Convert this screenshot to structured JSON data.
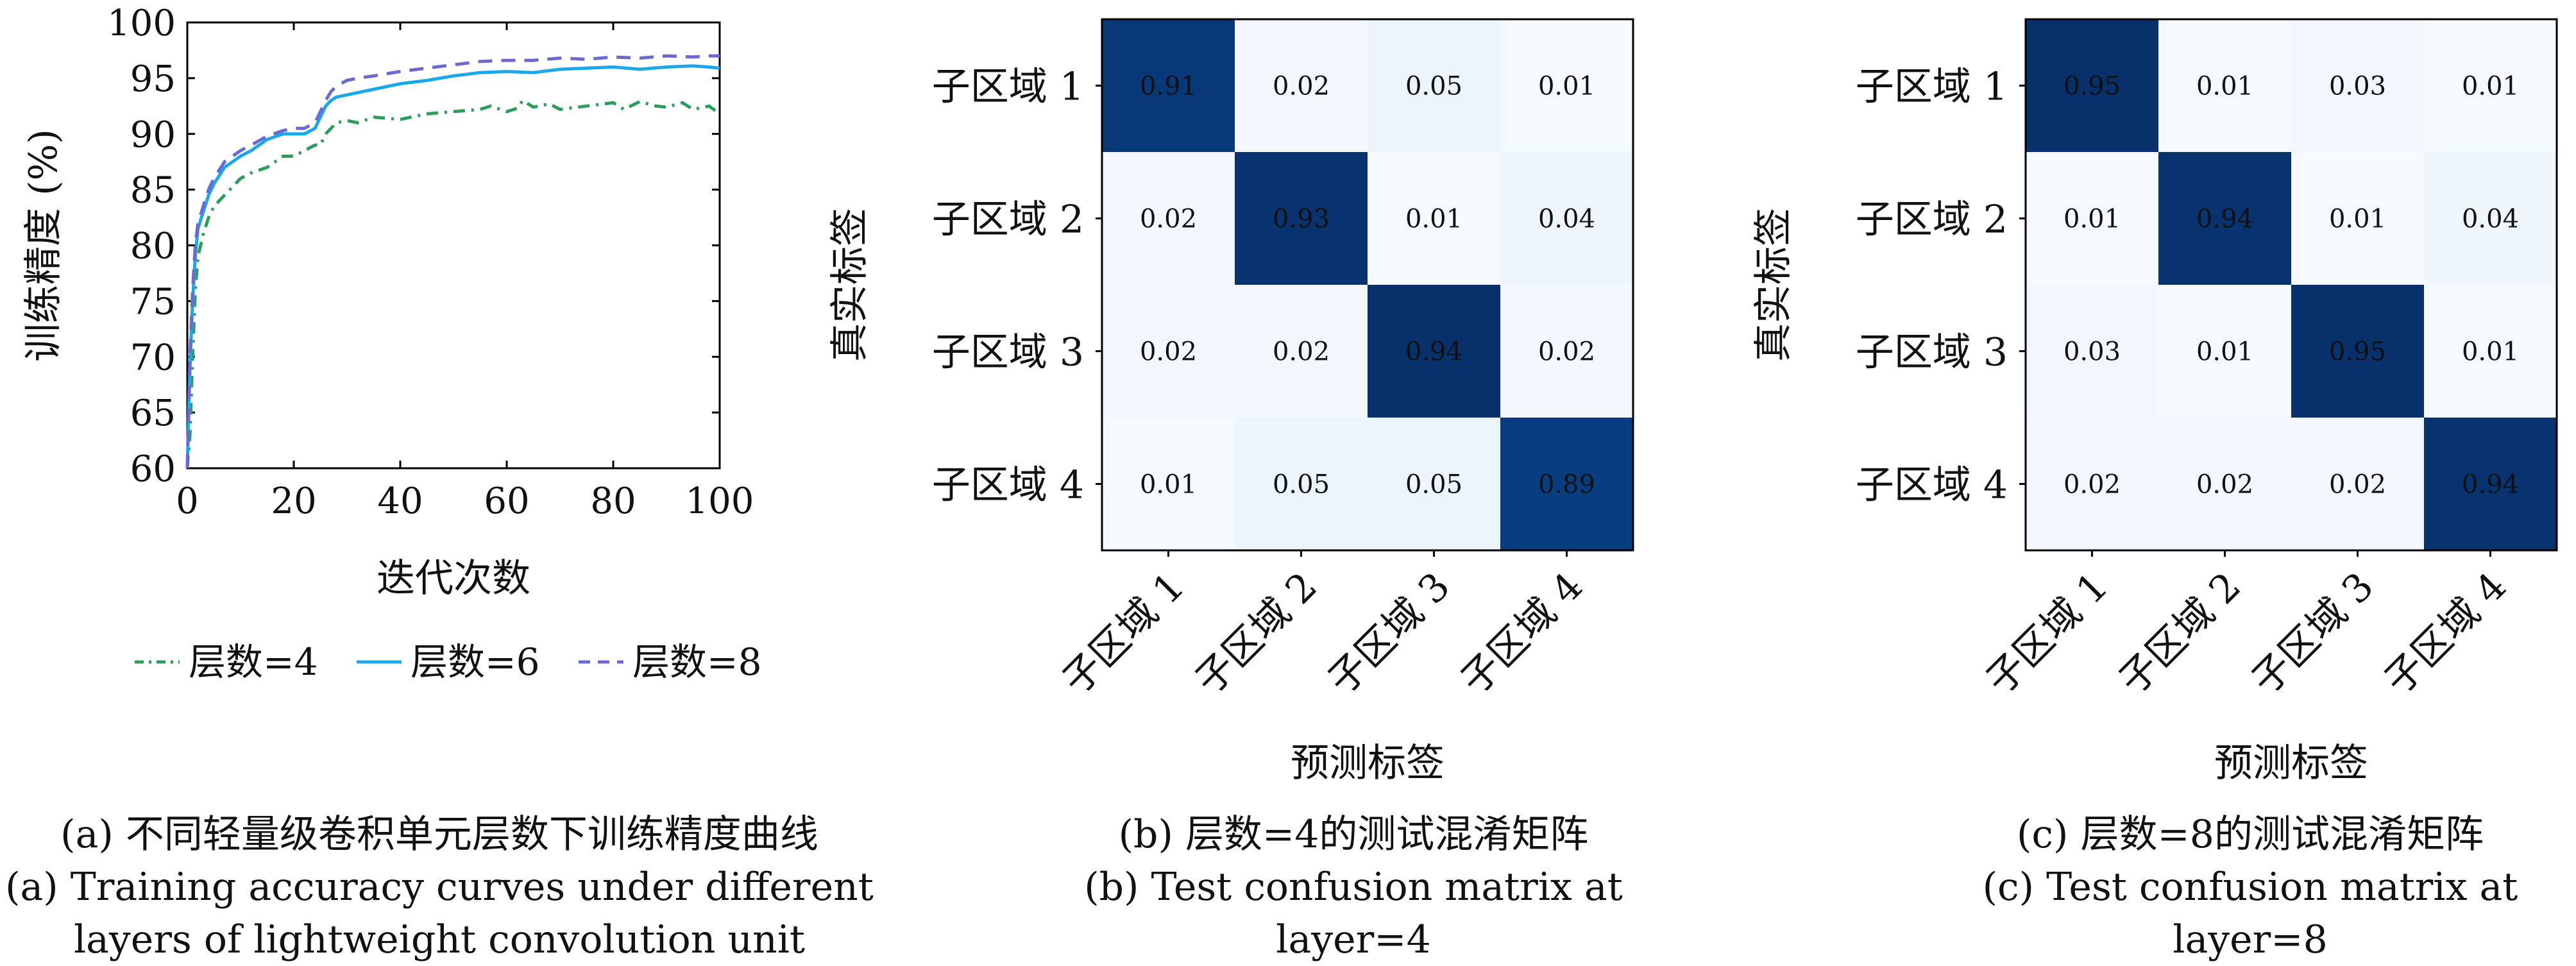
{
  "chart_data": [
    {
      "type": "line",
      "title": "",
      "xlabel": "迭代次数",
      "ylabel": "训练精度 (%)",
      "xlim": [
        0,
        100
      ],
      "ylim": [
        60,
        100
      ],
      "xticks": [
        "0",
        "20",
        "40",
        "60",
        "80",
        "100"
      ],
      "yticks": [
        "60",
        "65",
        "70",
        "75",
        "80",
        "85",
        "90",
        "95",
        "100"
      ],
      "legend_position": "bottom",
      "series": [
        {
          "name": "层数=4",
          "color": "#2e9e5e",
          "style": "dash-dot",
          "x": [
            0,
            0.5,
            1,
            1.5,
            2,
            3,
            4,
            5,
            7,
            10,
            12,
            15,
            18,
            20,
            22,
            24,
            25,
            26,
            27,
            28,
            30,
            32,
            35,
            40,
            45,
            50,
            55,
            57,
            60,
            62,
            63,
            65,
            68,
            70,
            75,
            80,
            82,
            85,
            88,
            90,
            93,
            95,
            98,
            100
          ],
          "y": [
            60,
            63,
            70,
            76,
            79,
            81,
            82.5,
            83.5,
            84.5,
            86,
            86.5,
            87,
            88,
            88,
            88.5,
            89,
            89,
            90,
            90.5,
            91,
            91.2,
            91,
            91.5,
            91.3,
            91.8,
            92,
            92.2,
            92.5,
            92,
            92.3,
            93,
            92.4,
            92.7,
            92.2,
            92.5,
            92.8,
            92.2,
            92.9,
            92.5,
            92.4,
            92.8,
            92.2,
            92.5,
            91.8
          ]
        },
        {
          "name": "层数=6",
          "color": "#1aa7ec",
          "style": "solid",
          "x": [
            0,
            0.5,
            1,
            1.5,
            2,
            3,
            4,
            5,
            7,
            10,
            12,
            15,
            18,
            20,
            22,
            24,
            25,
            26,
            27,
            28,
            30,
            32,
            35,
            40,
            45,
            50,
            55,
            60,
            65,
            70,
            75,
            80,
            85,
            90,
            95,
            98,
            100
          ],
          "y": [
            60,
            69,
            75,
            79,
            81.5,
            83,
            84.5,
            85.5,
            87,
            88,
            88.5,
            89.5,
            90,
            90,
            90,
            90.5,
            91.5,
            92.5,
            93,
            93.3,
            93.5,
            93.7,
            94,
            94.5,
            94.8,
            95.2,
            95.5,
            95.6,
            95.5,
            95.8,
            95.9,
            96,
            95.8,
            96,
            96.1,
            96,
            95.9
          ]
        },
        {
          "name": "层数=8",
          "color": "#6a6ad0",
          "style": "dash",
          "x": [
            0,
            0.5,
            1,
            1.5,
            2,
            3,
            4,
            5,
            7,
            10,
            12,
            15,
            18,
            20,
            22,
            24,
            25,
            26,
            27,
            28,
            30,
            32,
            35,
            40,
            45,
            50,
            55,
            60,
            65,
            70,
            75,
            80,
            85,
            90,
            95,
            98,
            100
          ],
          "y": [
            60,
            70,
            76,
            80,
            82,
            83.5,
            85,
            86,
            87.5,
            88.5,
            89,
            89.8,
            90.3,
            90.5,
            90.5,
            91,
            92,
            93,
            93.8,
            94.3,
            94.8,
            95,
            95.2,
            95.6,
            95.9,
            96.2,
            96.5,
            96.6,
            96.6,
            96.8,
            96.7,
            96.9,
            96.8,
            97,
            96.9,
            97,
            97
          ]
        }
      ]
    },
    {
      "type": "heatmap",
      "title": "",
      "xlabel": "预测标签",
      "ylabel": "真实标签",
      "colormap": "Blues",
      "x_categories": [
        "子区域 1",
        "子区域 2",
        "子区域 3",
        "子区域 4"
      ],
      "y_categories": [
        "子区域 1",
        "子区域 2",
        "子区域 3",
        "子区域 4"
      ],
      "values": [
        [
          0.91,
          0.02,
          0.05,
          0.01
        ],
        [
          0.02,
          0.93,
          0.01,
          0.04
        ],
        [
          0.02,
          0.02,
          0.94,
          0.02
        ],
        [
          0.01,
          0.05,
          0.05,
          0.89
        ]
      ]
    },
    {
      "type": "heatmap",
      "title": "",
      "xlabel": "预测标签",
      "ylabel": "真实标签",
      "colormap": "Blues",
      "x_categories": [
        "子区域 1",
        "子区域 2",
        "子区域 3",
        "子区域 4"
      ],
      "y_categories": [
        "子区域 1",
        "子区域 2",
        "子区域 3",
        "子区域 4"
      ],
      "values": [
        [
          0.95,
          0.01,
          0.03,
          0.01
        ],
        [
          0.01,
          0.94,
          0.01,
          0.04
        ],
        [
          0.03,
          0.01,
          0.95,
          0.01
        ],
        [
          0.02,
          0.02,
          0.02,
          0.94
        ]
      ]
    }
  ],
  "captions": {
    "a_zh": "(a) 不同轻量级卷积单元层数下训练精度曲线",
    "a_en_1": "(a) Training accuracy curves under different",
    "a_en_2": "layers of lightweight convolution unit",
    "b_zh": "(b) 层数=4的测试混淆矩阵",
    "b_en_1": "(b) Test confusion matrix at",
    "b_en_2": "layer=4",
    "c_zh": "(c) 层数=8的测试混淆矩阵",
    "c_en_1": "(c) Test confusion matrix at",
    "c_en_2": "layer=8"
  }
}
